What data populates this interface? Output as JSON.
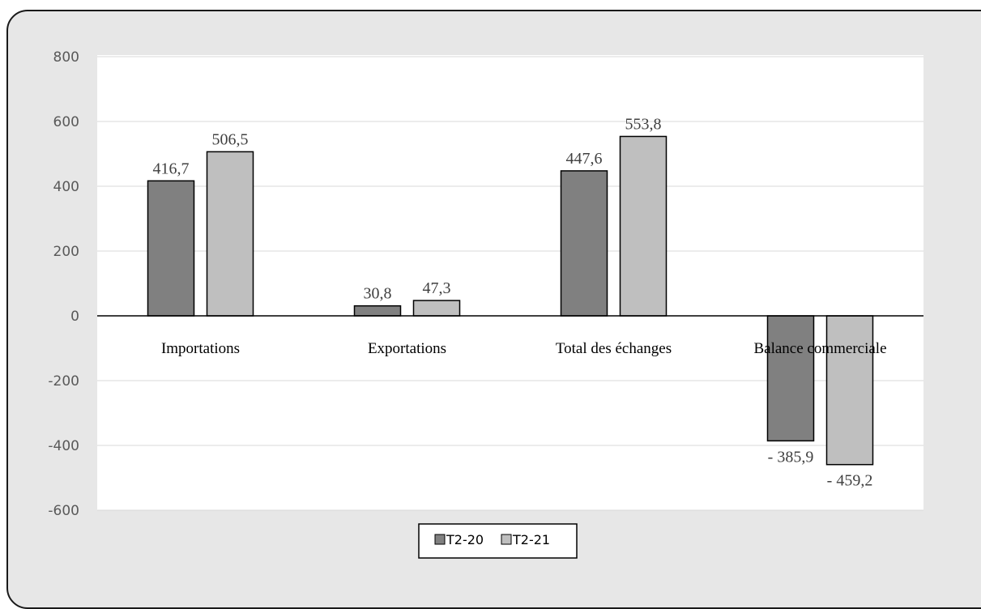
{
  "chart_data": {
    "type": "bar",
    "categories": [
      "Importations",
      "Exportations",
      "Total des échanges",
      "Balance commerciale"
    ],
    "series": [
      {
        "name": "T2-20",
        "color": "#808080",
        "values": [
          416.7,
          30.8,
          447.6,
          -385.9
        ],
        "labels": [
          "416,7",
          "30,8",
          "447,6",
          "- 385,9"
        ]
      },
      {
        "name": "T2-21",
        "color": "#bfbfbf",
        "values": [
          506.5,
          47.3,
          553.8,
          -459.2
        ],
        "labels": [
          "506,5",
          "47,3",
          "553,8",
          "- 459,2"
        ]
      }
    ],
    "yticks": [
      "800",
      "600",
      "400",
      "200",
      "0",
      "-200",
      "-400",
      "-600"
    ],
    "ylim": [
      -600,
      800
    ],
    "grid": true,
    "legend": "bottom"
  }
}
